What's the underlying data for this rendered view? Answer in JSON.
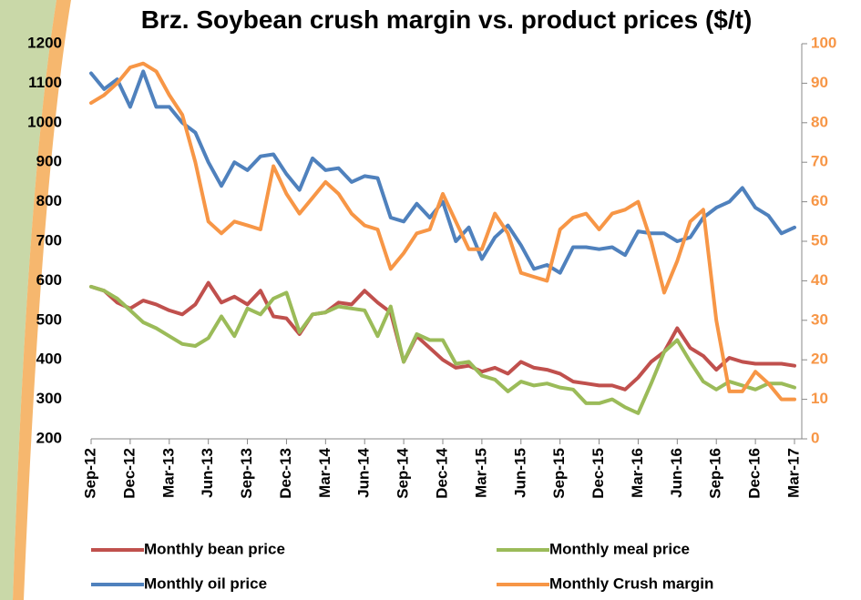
{
  "chart_data": {
    "type": "line",
    "title": "Brz. Soybean crush margin vs. product prices ($/t)",
    "categories": [
      "Sep-12",
      null,
      null,
      "Dec-12",
      null,
      null,
      "Mar-13",
      null,
      null,
      "Jun-13",
      null,
      null,
      "Sep-13",
      null,
      null,
      "Dec-13",
      null,
      null,
      "Mar-14",
      null,
      null,
      "Jun-14",
      null,
      null,
      "Sep-14",
      null,
      null,
      "Dec-14",
      null,
      null,
      "Mar-15",
      null,
      null,
      "Jun-15",
      null,
      null,
      "Sep-15",
      null,
      null,
      "Dec-15",
      null,
      null,
      "Mar-16",
      null,
      null,
      "Jun-16",
      null,
      null,
      "Sep-16",
      null,
      null,
      "Dec-16",
      null,
      null,
      "Mar-17"
    ],
    "series": [
      {
        "name": "Monthly bean price",
        "color": "#c0504d",
        "values": [
          585,
          575,
          545,
          530,
          550,
          540,
          525,
          515,
          540,
          595,
          545,
          560,
          540,
          575,
          510,
          505,
          465,
          515,
          520,
          545,
          540,
          575,
          545,
          520,
          395,
          460,
          430,
          400,
          380,
          385,
          370,
          380,
          365,
          395,
          380,
          375,
          365,
          345,
          340,
          335,
          335,
          325,
          355,
          395,
          420,
          480,
          430,
          410,
          375,
          405,
          395,
          390,
          390,
          390,
          385
        ]
      },
      {
        "name": "Monthly meal price",
        "color": "#9bbb59",
        "values": [
          585,
          575,
          555,
          525,
          495,
          480,
          460,
          440,
          435,
          455,
          510,
          460,
          530,
          515,
          555,
          570,
          470,
          515,
          520,
          535,
          530,
          525,
          460,
          535,
          395,
          465,
          450,
          450,
          390,
          395,
          360,
          350,
          320,
          345,
          335,
          340,
          330,
          325,
          290,
          290,
          300,
          280,
          265,
          340,
          420,
          450,
          395,
          345,
          325,
          345,
          335,
          325,
          340,
          340,
          330
        ]
      },
      {
        "name": "Monthly oil price",
        "color": "#4f81bd",
        "values": [
          1125,
          1085,
          1110,
          1040,
          1130,
          1040,
          1040,
          1000,
          975,
          900,
          840,
          900,
          880,
          915,
          920,
          870,
          830,
          910,
          880,
          885,
          850,
          865,
          860,
          760,
          750,
          795,
          760,
          800,
          700,
          735,
          655,
          710,
          740,
          690,
          630,
          640,
          620,
          685,
          685,
          680,
          685,
          665,
          725,
          720,
          720,
          700,
          710,
          760,
          785,
          800,
          835,
          785,
          765,
          720,
          735
        ]
      },
      {
        "name": "Monthly Crush margin",
        "color": "#f79646",
        "axis": "y2",
        "values": [
          85,
          87,
          90,
          94,
          95,
          93,
          87,
          82,
          70,
          55,
          52,
          55,
          54,
          53,
          69,
          62,
          57,
          61,
          65,
          62,
          57,
          54,
          53,
          43,
          47,
          52,
          53,
          62,
          55,
          48,
          48,
          57,
          52,
          42,
          41,
          40,
          53,
          56,
          57,
          53,
          57,
          58,
          60,
          50,
          37,
          45,
          55,
          58,
          30,
          12,
          12,
          17,
          14,
          10,
          10
        ]
      }
    ],
    "ylim": [
      200,
      1200
    ],
    "yticks": [
      200,
      300,
      400,
      500,
      600,
      700,
      800,
      900,
      1000,
      1100,
      1200
    ],
    "y2lim": [
      0,
      100
    ],
    "y2ticks": [
      0,
      10,
      20,
      30,
      40,
      50,
      60,
      70,
      80,
      90,
      100
    ],
    "y2color": "#f79646",
    "legend": "bottom"
  }
}
